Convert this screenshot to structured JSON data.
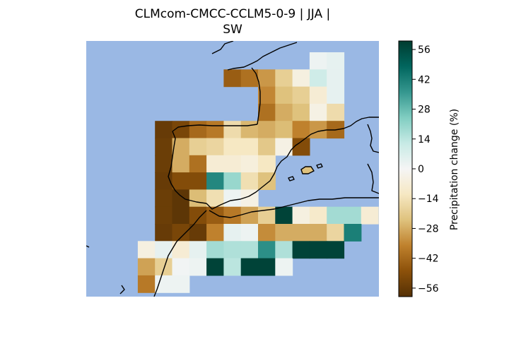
{
  "title": {
    "line1": "CLMcom-CMCC-CCLM5-0-9 | JJA |",
    "line2": "SW"
  },
  "colorbar": {
    "label": "Precipitation change (%)",
    "ticks": [
      56,
      42,
      28,
      14,
      0,
      -14,
      -28,
      -42,
      -56
    ],
    "tick_labels": [
      "56",
      "42",
      "28",
      "14",
      "0",
      "−14",
      "−28",
      "−42",
      "−56"
    ],
    "vmin": -60,
    "vmax": 60,
    "colormap": "BrBG"
  },
  "colors": {
    "sea": "#9ab8e4",
    "coast": "#000000"
  },
  "chart_data": {
    "type": "heatmap",
    "variable": "Precipitation change (%)",
    "rows": [
      {
        "cells": [
          [
            13,
            2
          ],
          [
            14,
            4
          ]
        ]
      },
      {
        "cells": [
          [
            8,
            -45
          ],
          [
            9,
            -40
          ],
          [
            10,
            -32
          ],
          [
            11,
            -20
          ],
          [
            12,
            -5
          ],
          [
            13,
            10
          ],
          [
            14,
            4
          ]
        ]
      },
      {
        "cells": [
          [
            10,
            -35
          ],
          [
            11,
            -24
          ],
          [
            12,
            -20
          ],
          [
            13,
            -8
          ],
          [
            14,
            4
          ]
        ]
      },
      {
        "cells": [
          [
            10,
            -40
          ],
          [
            11,
            -28
          ],
          [
            12,
            -24
          ],
          [
            13,
            -4
          ],
          [
            14,
            -16
          ]
        ]
      },
      {
        "cells": [
          [
            4,
            -56
          ],
          [
            5,
            -52
          ],
          [
            6,
            -42
          ],
          [
            7,
            -38
          ],
          [
            8,
            -16
          ],
          [
            9,
            -26
          ],
          [
            10,
            -28
          ],
          [
            11,
            -25
          ],
          [
            12,
            -36
          ],
          [
            13,
            -32
          ],
          [
            14,
            -42
          ]
        ]
      },
      {
        "cells": [
          [
            4,
            -55
          ],
          [
            5,
            -28
          ],
          [
            6,
            -20
          ],
          [
            7,
            -18
          ],
          [
            8,
            -12
          ],
          [
            9,
            -12
          ],
          [
            10,
            -22
          ],
          [
            11,
            -4
          ],
          [
            12,
            -50
          ]
        ]
      },
      {
        "cells": [
          [
            4,
            -55
          ],
          [
            5,
            -28
          ],
          [
            6,
            -40
          ],
          [
            7,
            -8
          ],
          [
            8,
            -8
          ],
          [
            9,
            -6
          ],
          [
            10,
            -12
          ]
        ]
      },
      {
        "cells": [
          [
            4,
            -56
          ],
          [
            5,
            -50
          ],
          [
            6,
            -50
          ],
          [
            7,
            40
          ],
          [
            8,
            20
          ],
          [
            9,
            -15
          ],
          [
            10,
            -24
          ]
        ]
      },
      {
        "cells": [
          [
            4,
            -55
          ],
          [
            5,
            -58
          ],
          [
            6,
            -25
          ],
          [
            7,
            -15
          ],
          [
            8,
            2
          ],
          [
            9,
            -4
          ]
        ]
      },
      {
        "cells": [
          [
            4,
            -55
          ],
          [
            5,
            -58
          ],
          [
            6,
            -50
          ],
          [
            7,
            -45
          ],
          [
            8,
            -38
          ],
          [
            9,
            -30
          ],
          [
            10,
            -20
          ],
          [
            11,
            58
          ],
          [
            12,
            -5
          ],
          [
            13,
            -10
          ],
          [
            14,
            18
          ],
          [
            15,
            18
          ],
          [
            16,
            -8
          ]
        ]
      },
      {
        "cells": [
          [
            4,
            -56
          ],
          [
            5,
            -52
          ],
          [
            6,
            -56
          ],
          [
            7,
            -36
          ],
          [
            8,
            4
          ],
          [
            9,
            2
          ],
          [
            10,
            -34
          ],
          [
            11,
            -28
          ],
          [
            12,
            -28
          ],
          [
            13,
            -28
          ],
          [
            14,
            -18
          ],
          [
            15,
            42
          ]
        ]
      },
      {
        "cells": [
          [
            3,
            -5
          ],
          [
            4,
            4
          ],
          [
            5,
            -8
          ],
          [
            6,
            4
          ],
          [
            7,
            18
          ],
          [
            8,
            16
          ],
          [
            9,
            16
          ],
          [
            10,
            38
          ],
          [
            11,
            16
          ],
          [
            12,
            58
          ],
          [
            13,
            58
          ],
          [
            14,
            58
          ]
        ]
      },
      {
        "cells": [
          [
            3,
            -30
          ],
          [
            4,
            -20
          ],
          [
            5,
            1
          ],
          [
            6,
            2
          ],
          [
            7,
            58
          ],
          [
            8,
            14
          ],
          [
            9,
            58
          ],
          [
            10,
            58
          ],
          [
            11,
            2
          ]
        ]
      },
      {
        "cells": [
          [
            3,
            -38
          ],
          [
            4,
            2
          ],
          [
            5,
            2
          ]
        ]
      }
    ]
  }
}
